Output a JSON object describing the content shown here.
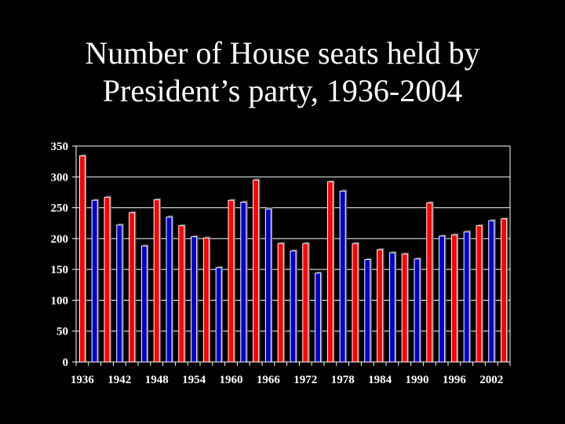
{
  "title_line1": "Number of House seats held by",
  "title_line2": "President’s party, 1936-2004",
  "chart_data": {
    "type": "bar",
    "title": "Number of House seats held by President’s party, 1936-2004",
    "xlabel": "",
    "ylabel": "",
    "ylim": [
      0,
      350
    ],
    "yticks": [
      0,
      50,
      100,
      150,
      200,
      250,
      300,
      350
    ],
    "xtick_labels": [
      "1936",
      "1942",
      "1948",
      "1954",
      "1960",
      "1966",
      "1972",
      "1978",
      "1984",
      "1990",
      "1996",
      "2002"
    ],
    "grid": "horizontal",
    "colors": {
      "red": "#ff0000",
      "blue": "#0000cc",
      "background": "#000000"
    },
    "bars": [
      {
        "year": 1936,
        "value": 334,
        "color": "red"
      },
      {
        "year": 1938,
        "value": 262,
        "color": "blue"
      },
      {
        "year": 1940,
        "value": 267,
        "color": "red"
      },
      {
        "year": 1942,
        "value": 222,
        "color": "blue"
      },
      {
        "year": 1944,
        "value": 242,
        "color": "red"
      },
      {
        "year": 1946,
        "value": 188,
        "color": "blue"
      },
      {
        "year": 1948,
        "value": 263,
        "color": "red"
      },
      {
        "year": 1950,
        "value": 235,
        "color": "blue"
      },
      {
        "year": 1952,
        "value": 221,
        "color": "red"
      },
      {
        "year": 1954,
        "value": 203,
        "color": "blue"
      },
      {
        "year": 1956,
        "value": 201,
        "color": "red"
      },
      {
        "year": 1958,
        "value": 153,
        "color": "blue"
      },
      {
        "year": 1960,
        "value": 262,
        "color": "red"
      },
      {
        "year": 1962,
        "value": 259,
        "color": "blue"
      },
      {
        "year": 1964,
        "value": 295,
        "color": "red"
      },
      {
        "year": 1966,
        "value": 248,
        "color": "blue"
      },
      {
        "year": 1968,
        "value": 192,
        "color": "red"
      },
      {
        "year": 1970,
        "value": 180,
        "color": "blue"
      },
      {
        "year": 1972,
        "value": 192,
        "color": "red"
      },
      {
        "year": 1974,
        "value": 144,
        "color": "blue"
      },
      {
        "year": 1976,
        "value": 292,
        "color": "red"
      },
      {
        "year": 1978,
        "value": 277,
        "color": "blue"
      },
      {
        "year": 1980,
        "value": 192,
        "color": "red"
      },
      {
        "year": 1982,
        "value": 166,
        "color": "blue"
      },
      {
        "year": 1984,
        "value": 182,
        "color": "red"
      },
      {
        "year": 1986,
        "value": 177,
        "color": "blue"
      },
      {
        "year": 1988,
        "value": 175,
        "color": "red"
      },
      {
        "year": 1990,
        "value": 167,
        "color": "blue"
      },
      {
        "year": 1992,
        "value": 258,
        "color": "red"
      },
      {
        "year": 1994,
        "value": 204,
        "color": "blue"
      },
      {
        "year": 1996,
        "value": 206,
        "color": "red"
      },
      {
        "year": 1998,
        "value": 211,
        "color": "blue"
      },
      {
        "year": 2000,
        "value": 221,
        "color": "red"
      },
      {
        "year": 2002,
        "value": 229,
        "color": "blue"
      },
      {
        "year": 2004,
        "value": 232,
        "color": "red"
      }
    ]
  }
}
